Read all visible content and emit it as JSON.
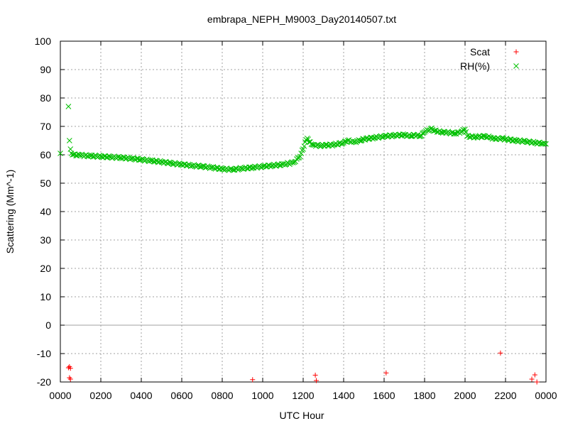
{
  "chart_data": {
    "type": "scatter",
    "title": "embrapa_NEPH_M9003_Day20140507.txt",
    "xlabel": "UTC Hour",
    "ylabel": "Scattering (Mm^-1)",
    "xlim": [
      0,
      24
    ],
    "ylim": [
      -20,
      100
    ],
    "grid": true,
    "legend_position": "top-right",
    "x_ticks": [
      {
        "value": 0,
        "label": "0000"
      },
      {
        "value": 2,
        "label": "0200"
      },
      {
        "value": 4,
        "label": "0400"
      },
      {
        "value": 6,
        "label": "0600"
      },
      {
        "value": 8,
        "label": "0800"
      },
      {
        "value": 10,
        "label": "1000"
      },
      {
        "value": 12,
        "label": "1200"
      },
      {
        "value": 14,
        "label": "1400"
      },
      {
        "value": 16,
        "label": "1600"
      },
      {
        "value": 18,
        "label": "1800"
      },
      {
        "value": 20,
        "label": "2000"
      },
      {
        "value": 22,
        "label": "2200"
      },
      {
        "value": 24,
        "label": "0000"
      }
    ],
    "y_ticks": [
      {
        "value": 100,
        "label": "100"
      },
      {
        "value": 90,
        "label": "90"
      },
      {
        "value": 80,
        "label": "80"
      },
      {
        "value": 70,
        "label": "70"
      },
      {
        "value": 60,
        "label": "60"
      },
      {
        "value": 50,
        "label": "50"
      },
      {
        "value": 40,
        "label": "40"
      },
      {
        "value": 30,
        "label": "30"
      },
      {
        "value": 20,
        "label": "20"
      },
      {
        "value": 10,
        "label": "10"
      },
      {
        "value": 0,
        "label": "0"
      },
      {
        "value": -10,
        "label": "-10"
      },
      {
        "value": -20,
        "label": "-20"
      }
    ],
    "series": [
      {
        "name": "Scat",
        "color": "#ff0000",
        "marker": "plus",
        "x": [
          0.4,
          0.45,
          0.5,
          0.45,
          0.5,
          9.5,
          12.6,
          12.65,
          16.1,
          21.75,
          23.3,
          23.45,
          23.55
        ],
        "y": [
          -15,
          -14.6,
          -15.2,
          -18.5,
          -19,
          -19.2,
          -17.6,
          -19.5,
          -16.8,
          -9.8,
          -19,
          -17.5,
          -20
        ]
      },
      {
        "name": "RH(%)",
        "color": "#00c000",
        "marker": "cross",
        "x": [
          0.0,
          0.4,
          0.45,
          0.5,
          0.55,
          0.6,
          1,
          1.5,
          2,
          2.5,
          3,
          3.5,
          4,
          4.5,
          5,
          5.5,
          6,
          6.5,
          7,
          7.5,
          8,
          8.5,
          9,
          9.5,
          10,
          10.5,
          11,
          11.5,
          11.8,
          12.0,
          12.1,
          12.2,
          12.3,
          12.5,
          12.8,
          13,
          13.5,
          14,
          14.2,
          14.5,
          14.8,
          15,
          15.5,
          16,
          16.5,
          17,
          17.3,
          17.5,
          17.8,
          18,
          18.3,
          18.5,
          18.8,
          19,
          19.5,
          19.8,
          20.0,
          20.1,
          20.5,
          21,
          21.3,
          21.5,
          21.8,
          22,
          22.5,
          23,
          23.5,
          23.8,
          24.0
        ],
        "y": [
          60.5,
          77,
          65,
          62,
          60.5,
          60,
          59.8,
          59.6,
          59.4,
          59.2,
          59.0,
          58.7,
          58.3,
          57.9,
          57.5,
          57.0,
          56.6,
          56.2,
          55.9,
          55.5,
          55.0,
          54.8,
          55.2,
          55.5,
          55.9,
          56.2,
          56.6,
          57.2,
          59,
          62,
          64.5,
          65.8,
          64.5,
          63.5,
          63.2,
          63.3,
          63.5,
          64.2,
          65,
          64.5,
          65,
          65.5,
          66,
          66.5,
          66.8,
          67,
          66.6,
          67,
          66.5,
          68,
          69.2,
          68.5,
          68,
          68,
          67.5,
          68,
          69,
          66.5,
          66.3,
          66.5,
          66,
          65.5,
          65.8,
          65.5,
          65,
          64.7,
          64.2,
          64.0,
          63.8
        ]
      }
    ]
  }
}
